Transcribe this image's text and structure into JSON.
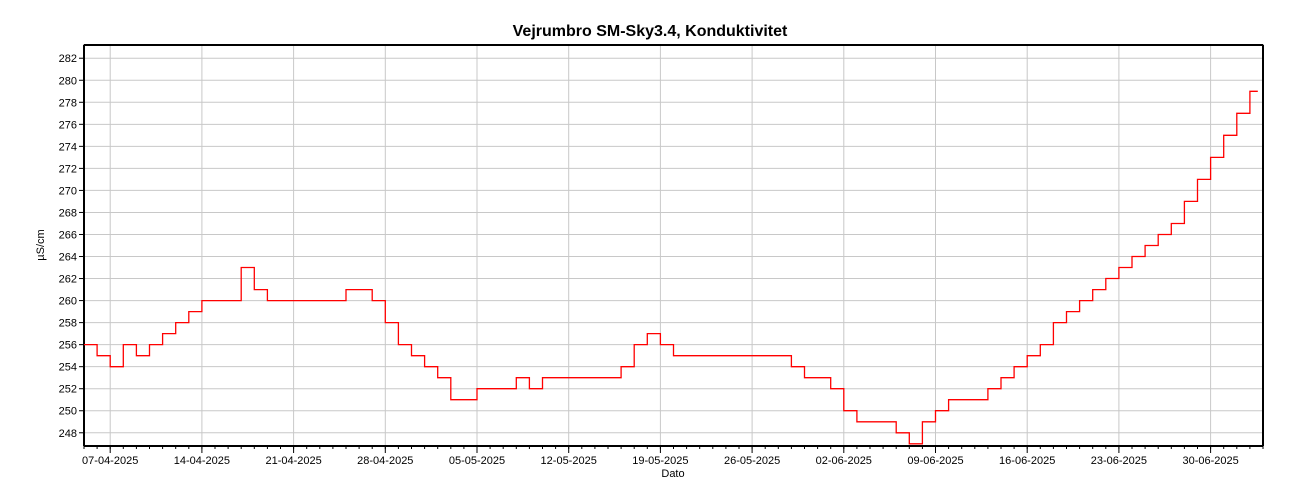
{
  "chart_data": {
    "type": "line",
    "title": "Vejrumbro SM-Sky3.4, Konduktivitet",
    "xlabel": "Dato",
    "ylabel": "µS/cm",
    "ylim": [
      246.8,
      283.2
    ],
    "yticks": [
      248,
      250,
      252,
      254,
      256,
      258,
      260,
      262,
      264,
      266,
      268,
      270,
      272,
      274,
      276,
      278,
      280,
      282
    ],
    "xlim": [
      "2025-04-05",
      "2025-07-04"
    ],
    "xticks": [
      "07-04-2025",
      "14-04-2025",
      "21-04-2025",
      "28-04-2025",
      "05-05-2025",
      "12-05-2025",
      "19-05-2025",
      "26-05-2025",
      "02-06-2025",
      "09-06-2025",
      "16-06-2025",
      "23-06-2025",
      "30-06-2025"
    ],
    "grid": true,
    "colors": {
      "line": "#ff0000",
      "grid": "#c8c8c8"
    },
    "series": [
      {
        "x": [
          "2025-04-05",
          "2025-04-06",
          "2025-04-07",
          "2025-04-08",
          "2025-04-09",
          "2025-04-10",
          "2025-04-11",
          "2025-04-12",
          "2025-04-13",
          "2025-04-14",
          "2025-04-15",
          "2025-04-16",
          "2025-04-17",
          "2025-04-18",
          "2025-04-19",
          "2025-04-20",
          "2025-04-21",
          "2025-04-22",
          "2025-04-23",
          "2025-04-24",
          "2025-04-25",
          "2025-04-26",
          "2025-04-27",
          "2025-04-28",
          "2025-04-29",
          "2025-04-30",
          "2025-05-01",
          "2025-05-02",
          "2025-05-03",
          "2025-05-04",
          "2025-05-05",
          "2025-05-06",
          "2025-05-07",
          "2025-05-08",
          "2025-05-09",
          "2025-05-10",
          "2025-05-11",
          "2025-05-12",
          "2025-05-13",
          "2025-05-14",
          "2025-05-15",
          "2025-05-16",
          "2025-05-17",
          "2025-05-18",
          "2025-05-19",
          "2025-05-20",
          "2025-05-21",
          "2025-05-22",
          "2025-05-23",
          "2025-05-24",
          "2025-05-25",
          "2025-05-26",
          "2025-05-27",
          "2025-05-28",
          "2025-05-29",
          "2025-05-30",
          "2025-05-31",
          "2025-06-01",
          "2025-06-02",
          "2025-06-03",
          "2025-06-04",
          "2025-06-05",
          "2025-06-06",
          "2025-06-07",
          "2025-06-08",
          "2025-06-09",
          "2025-06-10",
          "2025-06-11",
          "2025-06-12",
          "2025-06-13",
          "2025-06-14",
          "2025-06-15",
          "2025-06-16",
          "2025-06-17",
          "2025-06-18",
          "2025-06-19",
          "2025-06-20",
          "2025-06-21",
          "2025-06-22",
          "2025-06-23",
          "2025-06-24",
          "2025-06-25",
          "2025-06-26",
          "2025-06-27",
          "2025-06-28",
          "2025-06-29",
          "2025-06-30",
          "2025-07-01",
          "2025-07-02",
          "2025-07-03"
        ],
        "values": [
          256,
          255,
          254,
          256,
          255,
          256,
          257,
          258,
          259,
          260,
          260,
          260,
          263,
          261,
          260,
          260,
          260,
          260,
          260,
          260,
          261,
          261,
          260,
          258,
          256,
          255,
          254,
          253,
          251,
          251,
          252,
          252,
          252,
          253,
          252,
          253,
          253,
          253,
          253,
          253,
          253,
          254,
          256,
          257,
          256,
          255,
          255,
          255,
          255,
          255,
          255,
          255,
          255,
          255,
          254,
          253,
          253,
          252,
          250,
          249,
          249,
          249,
          248,
          247,
          249,
          250,
          251,
          251,
          251,
          252,
          253,
          254,
          255,
          256,
          258,
          259,
          260,
          261,
          262,
          263,
          264,
          265,
          266,
          267,
          269,
          271,
          273,
          275,
          277,
          279
        ]
      }
    ]
  }
}
